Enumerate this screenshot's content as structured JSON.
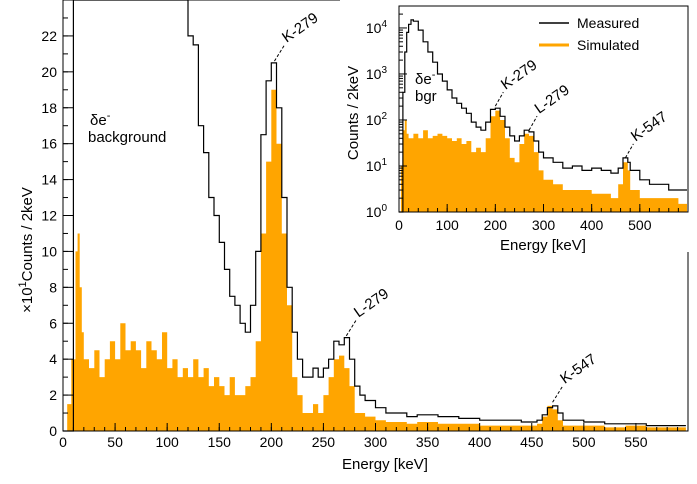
{
  "chart_data": [
    {
      "panel": "main",
      "type": "histogram",
      "xlabel": "Energy [keV]",
      "ylabel": "Counts / 2keV",
      "yscale_label": "×10",
      "yscale_exp": "1",
      "xlim": [
        0,
        600
      ],
      "ylim": [
        0,
        24
      ],
      "x_ticks": [
        "0",
        "50",
        "100",
        "150",
        "200",
        "250",
        "300",
        "350",
        "400",
        "450",
        "500",
        "550"
      ],
      "y_ticks": [
        "0",
        "2",
        "4",
        "6",
        "8",
        "10",
        "12",
        "14",
        "16",
        "18",
        "20",
        "22"
      ],
      "annotations": [
        {
          "text": "K-279",
          "at": [
            203,
            20.6
          ]
        },
        {
          "text": "L-279",
          "at": [
            272,
            5.3
          ]
        },
        {
          "text": "K-547",
          "at": [
            470,
            1.6
          ]
        }
      ],
      "background_label": {
        "symbol": "δe",
        "sup": "-",
        "line2": "background"
      },
      "series": [
        {
          "name": "Measured",
          "color": "#000000",
          "style": "step",
          "points": [
            [
              0,
              0
            ],
            [
              8,
              0
            ],
            [
              10,
              24
            ],
            [
              40,
              24
            ],
            [
              80,
              24
            ],
            [
              110,
              24
            ],
            [
              118,
              24
            ],
            [
              120,
              22
            ],
            [
              125,
              21.5
            ],
            [
              130,
              17
            ],
            [
              135,
              15.5
            ],
            [
              140,
              13
            ],
            [
              145,
              12
            ],
            [
              150,
              10.5
            ],
            [
              155,
              9
            ],
            [
              160,
              7.5
            ],
            [
              165,
              7
            ],
            [
              170,
              6
            ],
            [
              175,
              5.5
            ],
            [
              180,
              7
            ],
            [
              185,
              10
            ],
            [
              190,
              16.5
            ],
            [
              195,
              19.5
            ],
            [
              200,
              20.5
            ],
            [
              205,
              18
            ],
            [
              210,
              13
            ],
            [
              215,
              8
            ],
            [
              220,
              5.5
            ],
            [
              225,
              4
            ],
            [
              230,
              3
            ],
            [
              235,
              3
            ],
            [
              240,
              3.5
            ],
            [
              245,
              3
            ],
            [
              250,
              3.5
            ],
            [
              255,
              4
            ],
            [
              260,
              5
            ],
            [
              265,
              4.8
            ],
            [
              270,
              5.2
            ],
            [
              275,
              4
            ],
            [
              280,
              2.5
            ],
            [
              285,
              2
            ],
            [
              290,
              1.7
            ],
            [
              300,
              1.3
            ],
            [
              310,
              1
            ],
            [
              320,
              1
            ],
            [
              330,
              0.8
            ],
            [
              340,
              0.9
            ],
            [
              360,
              0.8
            ],
            [
              380,
              0.7
            ],
            [
              400,
              0.6
            ],
            [
              420,
              0.6
            ],
            [
              440,
              0.5
            ],
            [
              455,
              0.6
            ],
            [
              460,
              0.9
            ],
            [
              465,
              1.3
            ],
            [
              470,
              1.4
            ],
            [
              475,
              1
            ],
            [
              480,
              0.6
            ],
            [
              500,
              0.5
            ],
            [
              520,
              0.4
            ],
            [
              540,
              0.4
            ],
            [
              560,
              0.3
            ],
            [
              580,
              0.3
            ],
            [
              598,
              0.3
            ]
          ]
        },
        {
          "name": "Simulated",
          "color": "#ffa500",
          "style": "filled-histogram",
          "points": [
            [
              0,
              0
            ],
            [
              4,
              1.5
            ],
            [
              8,
              4
            ],
            [
              12,
              10
            ],
            [
              14,
              11
            ],
            [
              16,
              8
            ],
            [
              18,
              5.5
            ],
            [
              20,
              4
            ],
            [
              25,
              3.5
            ],
            [
              30,
              4.5
            ],
            [
              35,
              3
            ],
            [
              40,
              4
            ],
            [
              45,
              5
            ],
            [
              50,
              4
            ],
            [
              55,
              6
            ],
            [
              60,
              4.5
            ],
            [
              65,
              5
            ],
            [
              70,
              4.5
            ],
            [
              75,
              3.5
            ],
            [
              80,
              5
            ],
            [
              85,
              4.5
            ],
            [
              90,
              4
            ],
            [
              95,
              5.5
            ],
            [
              100,
              3.5
            ],
            [
              105,
              4
            ],
            [
              110,
              3
            ],
            [
              115,
              3.5
            ],
            [
              120,
              3
            ],
            [
              125,
              4
            ],
            [
              130,
              3
            ],
            [
              135,
              3.5
            ],
            [
              140,
              2.5
            ],
            [
              145,
              3
            ],
            [
              150,
              2.5
            ],
            [
              155,
              2
            ],
            [
              160,
              3
            ],
            [
              165,
              2
            ],
            [
              170,
              2
            ],
            [
              175,
              2.5
            ],
            [
              180,
              3
            ],
            [
              185,
              5
            ],
            [
              190,
              11
            ],
            [
              195,
              15
            ],
            [
              200,
              19
            ],
            [
              205,
              16
            ],
            [
              210,
              11
            ],
            [
              215,
              7
            ],
            [
              220,
              3
            ],
            [
              225,
              2
            ],
            [
              230,
              1
            ],
            [
              235,
              1
            ],
            [
              240,
              1.5
            ],
            [
              245,
              1
            ],
            [
              250,
              2
            ],
            [
              255,
              3
            ],
            [
              260,
              4
            ],
            [
              265,
              4.2
            ],
            [
              270,
              3.5
            ],
            [
              275,
              2.5
            ],
            [
              280,
              1
            ],
            [
              290,
              0.8
            ],
            [
              300,
              0.6
            ],
            [
              310,
              0.5
            ],
            [
              320,
              0.5
            ],
            [
              330,
              0.4
            ],
            [
              340,
              0.5
            ],
            [
              360,
              0.4
            ],
            [
              380,
              0.4
            ],
            [
              400,
              0.3
            ],
            [
              420,
              0.3
            ],
            [
              440,
              0.3
            ],
            [
              455,
              0.4
            ],
            [
              460,
              0.8
            ],
            [
              465,
              1.4
            ],
            [
              470,
              1.2
            ],
            [
              475,
              0.6
            ],
            [
              480,
              0.3
            ],
            [
              500,
              0.3
            ],
            [
              520,
              0.2
            ],
            [
              540,
              0.3
            ],
            [
              560,
              0.2
            ],
            [
              580,
              0.2
            ],
            [
              598,
              0.2
            ]
          ]
        }
      ]
    },
    {
      "panel": "inset",
      "type": "histogram",
      "xlabel": "Energy [keV]",
      "ylabel": "Counts / 2keV",
      "yscale": "log",
      "xlim": [
        0,
        600
      ],
      "ylim": [
        1,
        30000
      ],
      "x_ticks": [
        "0",
        "100",
        "200",
        "300",
        "400",
        "500"
      ],
      "y_ticks_exp": [
        "0",
        "1",
        "2",
        "3",
        "4"
      ],
      "y_tick_base": "10",
      "annotations": [
        {
          "text": "K-279",
          "at": [
            200,
            200
          ]
        },
        {
          "text": "L-279",
          "at": [
            270,
            60
          ]
        },
        {
          "text": "K-547",
          "at": [
            470,
            15
          ]
        }
      ],
      "background_label": {
        "symbol": "δe",
        "sup": "-",
        "line2": "bgr"
      },
      "legend": {
        "placement": "top-right"
      },
      "series": [
        {
          "name": "Measured",
          "color": "#000000",
          "style": "step",
          "points": [
            [
              0,
              1
            ],
            [
              5,
              1
            ],
            [
              8,
              400
            ],
            [
              12,
              3000
            ],
            [
              16,
              8000
            ],
            [
              20,
              12000
            ],
            [
              25,
              15000
            ],
            [
              30,
              14000
            ],
            [
              40,
              9000
            ],
            [
              50,
              5000
            ],
            [
              60,
              3000
            ],
            [
              70,
              1800
            ],
            [
              80,
              1000
            ],
            [
              90,
              700
            ],
            [
              100,
              450
            ],
            [
              110,
              300
            ],
            [
              120,
              230
            ],
            [
              130,
              180
            ],
            [
              140,
              140
            ],
            [
              150,
              90
            ],
            [
              160,
              70
            ],
            [
              170,
              60
            ],
            [
              180,
              90
            ],
            [
              190,
              170
            ],
            [
              200,
              180
            ],
            [
              210,
              120
            ],
            [
              220,
              70
            ],
            [
              230,
              45
            ],
            [
              240,
              35
            ],
            [
              250,
              45
            ],
            [
              260,
              60
            ],
            [
              270,
              55
            ],
            [
              280,
              35
            ],
            [
              290,
              20
            ],
            [
              300,
              15
            ],
            [
              320,
              12
            ],
            [
              340,
              9
            ],
            [
              360,
              10
            ],
            [
              380,
              8
            ],
            [
              400,
              9
            ],
            [
              420,
              8
            ],
            [
              440,
              7
            ],
            [
              455,
              9
            ],
            [
              465,
              15
            ],
            [
              475,
              12
            ],
            [
              480,
              8
            ],
            [
              500,
              5
            ],
            [
              520,
              4
            ],
            [
              540,
              4
            ],
            [
              560,
              3
            ],
            [
              580,
              3
            ],
            [
              598,
              3
            ]
          ]
        },
        {
          "name": "Simulated",
          "color": "#ffa500",
          "style": "filled-histogram",
          "points": [
            [
              0,
              1
            ],
            [
              4,
              10
            ],
            [
              8,
              60
            ],
            [
              12,
              100
            ],
            [
              16,
              50
            ],
            [
              20,
              40
            ],
            [
              30,
              50
            ],
            [
              40,
              40
            ],
            [
              50,
              60
            ],
            [
              60,
              40
            ],
            [
              70,
              45
            ],
            [
              80,
              50
            ],
            [
              90,
              45
            ],
            [
              100,
              40
            ],
            [
              110,
              35
            ],
            [
              120,
              40
            ],
            [
              130,
              30
            ],
            [
              140,
              35
            ],
            [
              150,
              20
            ],
            [
              160,
              25
            ],
            [
              170,
              20
            ],
            [
              180,
              40
            ],
            [
              190,
              120
            ],
            [
              200,
              160
            ],
            [
              210,
              100
            ],
            [
              220,
              40
            ],
            [
              230,
              15
            ],
            [
              240,
              12
            ],
            [
              250,
              30
            ],
            [
              260,
              50
            ],
            [
              270,
              45
            ],
            [
              280,
              20
            ],
            [
              290,
              8
            ],
            [
              300,
              5
            ],
            [
              320,
              4
            ],
            [
              340,
              3
            ],
            [
              360,
              3
            ],
            [
              380,
              3
            ],
            [
              400,
              2.5
            ],
            [
              420,
              2.5
            ],
            [
              440,
              2
            ],
            [
              455,
              4
            ],
            [
              465,
              12
            ],
            [
              475,
              8
            ],
            [
              480,
              3
            ],
            [
              500,
              2
            ],
            [
              520,
              2
            ],
            [
              540,
              2
            ],
            [
              560,
              2
            ],
            [
              580,
              1.5
            ],
            [
              598,
              1.5
            ]
          ]
        }
      ]
    }
  ]
}
